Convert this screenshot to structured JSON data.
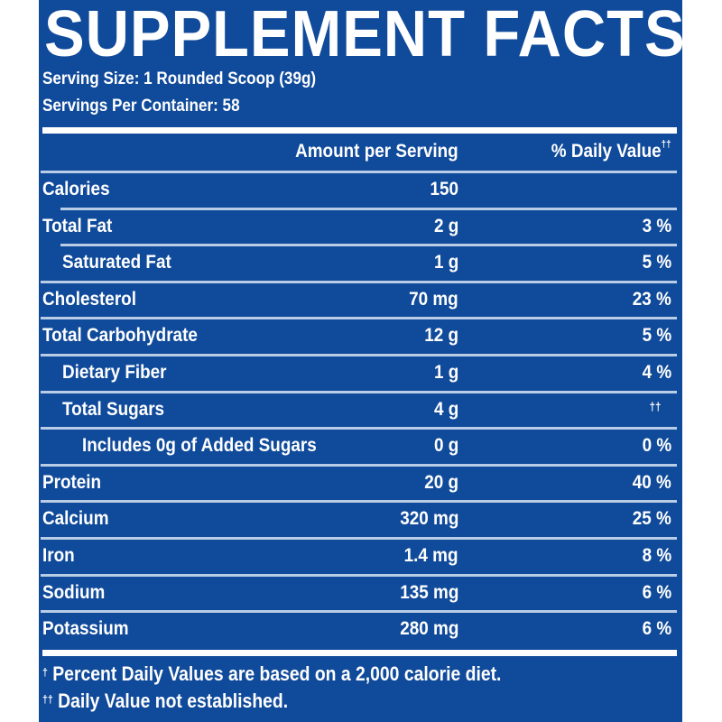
{
  "label": {
    "title": "SUPPLEMENT FACTS",
    "serving_size": "Serving Size: 1 Rounded Scoop (39g)",
    "servings_per_container": "Servings Per Container: 58",
    "header": {
      "amount": "Amount per Serving",
      "daily_value": "% Daily Value",
      "daily_value_mark": "††"
    },
    "rows": [
      {
        "name": "Calories",
        "amount": "150",
        "dv": "",
        "level": 0
      },
      {
        "name": "Total Fat",
        "amount": "2 g",
        "dv": "3 %",
        "level": 0
      },
      {
        "name": "Saturated Fat",
        "amount": "1 g",
        "dv": "5 %",
        "level": 1
      },
      {
        "name": "Cholesterol",
        "amount": "70 mg",
        "dv": "23 %",
        "level": 0
      },
      {
        "name": "Total Carbohydrate",
        "amount": "12 g",
        "dv": "5 %",
        "level": 0
      },
      {
        "name": "Dietary Fiber",
        "amount": "1 g",
        "dv": "4 %",
        "level": 1
      },
      {
        "name": "Total Sugars",
        "amount": "4 g",
        "dv": "††",
        "level": 1
      },
      {
        "name": "Includes 0g of Added Sugars",
        "amount": "0 g",
        "dv": "0 %",
        "level": 2
      },
      {
        "name": "Protein",
        "amount": "20 g",
        "dv": "40 %",
        "level": 0
      },
      {
        "name": "Calcium",
        "amount": "320 mg",
        "dv": "25 %",
        "level": 0
      },
      {
        "name": "Iron",
        "amount": "1.4 mg",
        "dv": "8 %",
        "level": 0
      },
      {
        "name": "Sodium",
        "amount": "135 mg",
        "dv": "6 %",
        "level": 0
      },
      {
        "name": "Potassium",
        "amount": "280 mg",
        "dv": "6 %",
        "level": 0
      }
    ],
    "footnotes": [
      {
        "mark": "†",
        "text": " Percent Daily Values are based on a 2,000 calorie diet."
      },
      {
        "mark": "††",
        "text": " Daily Value not established."
      }
    ]
  },
  "colors": {
    "background": "#104a9a",
    "text": "#ffffff",
    "divider": "#b9cde6"
  }
}
